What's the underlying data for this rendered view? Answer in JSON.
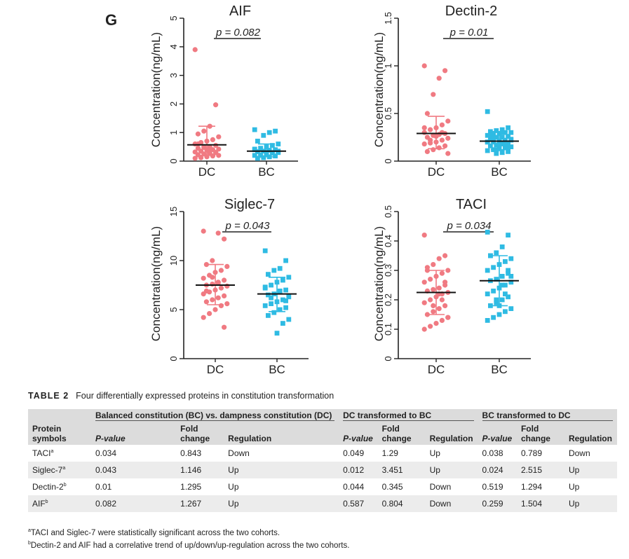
{
  "figure": {
    "panel_label": "G",
    "y_axis_label": "Concentration(ng/mL)"
  },
  "chart_data": [
    {
      "type": "scatter",
      "title": "AIF",
      "pvalue": "p = 0.082",
      "categories": [
        "DC",
        "BC"
      ],
      "ylim": [
        0,
        5
      ],
      "yticks": [
        0,
        1,
        2,
        3,
        4,
        5
      ],
      "xlabel": "",
      "ylabel": "Concentration(ng/mL)",
      "series": [
        {
          "name": "DC",
          "color": "#f07a82",
          "mean": 0.57,
          "sd_low": 0.2,
          "sd_high": 1.22,
          "values": [
            3.9,
            1.97,
            1.22,
            1.05,
            0.95,
            0.85,
            0.75,
            0.7,
            0.65,
            0.6,
            0.55,
            0.5,
            0.48,
            0.45,
            0.42,
            0.4,
            0.38,
            0.35,
            0.32,
            0.3,
            0.28,
            0.25,
            0.22,
            0.2,
            0.18,
            0.15,
            0.12,
            0.1,
            0.3,
            0.4,
            0.5,
            0.6
          ]
        },
        {
          "name": "BC",
          "color": "#2fbbe3",
          "mean": 0.35,
          "sd_low": 0.15,
          "sd_high": 0.6,
          "values": [
            1.1,
            1.05,
            1.0,
            0.9,
            0.7,
            0.6,
            0.55,
            0.5,
            0.45,
            0.42,
            0.4,
            0.38,
            0.35,
            0.33,
            0.3,
            0.28,
            0.25,
            0.22,
            0.2,
            0.18,
            0.15,
            0.12,
            0.1,
            0.35,
            0.3,
            0.25,
            0.2,
            0.4
          ]
        }
      ]
    },
    {
      "type": "scatter",
      "title": "Dectin-2",
      "pvalue": "p = 0.01",
      "categories": [
        "DC",
        "BC"
      ],
      "ylim": [
        0,
        1.5
      ],
      "yticks": [
        0,
        0.5,
        1,
        1.5
      ],
      "xlabel": "",
      "ylabel": "Concentration(ng/mL)",
      "series": [
        {
          "name": "DC",
          "color": "#f07a82",
          "mean": 0.29,
          "sd_low": 0.13,
          "sd_high": 0.47,
          "values": [
            1.0,
            0.95,
            0.87,
            0.7,
            0.5,
            0.42,
            0.38,
            0.35,
            0.33,
            0.3,
            0.29,
            0.28,
            0.27,
            0.25,
            0.24,
            0.22,
            0.2,
            0.19,
            0.18,
            0.16,
            0.14,
            0.12,
            0.1,
            0.08,
            0.3,
            0.26,
            0.22,
            0.35
          ]
        },
        {
          "name": "BC",
          "color": "#2fbbe3",
          "mean": 0.21,
          "sd_low": 0.12,
          "sd_high": 0.31,
          "values": [
            0.52,
            0.35,
            0.33,
            0.32,
            0.31,
            0.3,
            0.3,
            0.29,
            0.28,
            0.27,
            0.26,
            0.25,
            0.25,
            0.24,
            0.23,
            0.22,
            0.21,
            0.2,
            0.2,
            0.19,
            0.18,
            0.17,
            0.16,
            0.15,
            0.14,
            0.13,
            0.12,
            0.11,
            0.1,
            0.09,
            0.08,
            0.27,
            0.22,
            0.18,
            0.16,
            0.24,
            0.2,
            0.15,
            0.3,
            0.12
          ]
        }
      ]
    },
    {
      "type": "scatter",
      "title": "Siglec-7",
      "pvalue": "p = 0.043",
      "categories": [
        "DC",
        "BC"
      ],
      "ylim": [
        0,
        15
      ],
      "yticks": [
        0,
        5,
        10,
        15
      ],
      "xlabel": "",
      "ylabel": "Concentration(ng/mL)",
      "series": [
        {
          "name": "DC",
          "color": "#f07a82",
          "mean": 7.5,
          "sd_low": 5.5,
          "sd_high": 9.6,
          "values": [
            13.0,
            12.2,
            12.8,
            10.0,
            9.6,
            9.4,
            9.0,
            8.8,
            8.5,
            8.2,
            8.0,
            7.8,
            7.6,
            7.5,
            7.4,
            7.2,
            7.0,
            6.8,
            6.6,
            6.4,
            6.2,
            6.0,
            5.8,
            5.6,
            5.4,
            5.0,
            4.6,
            4.2,
            3.2,
            7.7,
            8.3,
            6.9
          ]
        },
        {
          "name": "BC",
          "color": "#2fbbe3",
          "mean": 6.6,
          "sd_low": 4.8,
          "sd_high": 8.3,
          "values": [
            11.0,
            10.0,
            9.2,
            9.0,
            8.6,
            8.3,
            8.0,
            7.8,
            7.5,
            7.3,
            7.0,
            6.8,
            6.6,
            6.5,
            6.3,
            6.0,
            5.8,
            5.6,
            5.4,
            5.2,
            5.0,
            4.7,
            4.4,
            4.0,
            3.6,
            2.6,
            6.2,
            7.2,
            5.9,
            6.9
          ]
        }
      ]
    },
    {
      "type": "scatter",
      "title": "TACI",
      "pvalue": "p = 0.034",
      "categories": [
        "DC",
        "BC"
      ],
      "ylim": [
        0,
        0.5
      ],
      "yticks": [
        0,
        0.1,
        0.2,
        0.3,
        0.4,
        0.5
      ],
      "xlabel": "",
      "ylabel": "Concentration(ng/mL)",
      "series": [
        {
          "name": "DC",
          "color": "#f07a82",
          "mean": 0.225,
          "sd_low": 0.15,
          "sd_high": 0.3,
          "values": [
            0.42,
            0.35,
            0.34,
            0.32,
            0.31,
            0.3,
            0.29,
            0.28,
            0.27,
            0.26,
            0.25,
            0.24,
            0.235,
            0.23,
            0.225,
            0.22,
            0.21,
            0.2,
            0.19,
            0.18,
            0.17,
            0.16,
            0.15,
            0.14,
            0.13,
            0.12,
            0.11,
            0.1,
            0.26,
            0.22,
            0.18,
            0.3,
            0.14,
            0.2
          ]
        },
        {
          "name": "BC",
          "color": "#2fbbe3",
          "mean": 0.265,
          "sd_low": 0.18,
          "sd_high": 0.35,
          "values": [
            0.43,
            0.42,
            0.38,
            0.36,
            0.35,
            0.34,
            0.33,
            0.32,
            0.31,
            0.3,
            0.29,
            0.28,
            0.27,
            0.265,
            0.26,
            0.25,
            0.24,
            0.23,
            0.22,
            0.21,
            0.2,
            0.19,
            0.18,
            0.17,
            0.16,
            0.15,
            0.14,
            0.13,
            0.3,
            0.25,
            0.2,
            0.35,
            0.28,
            0.22,
            0.18
          ]
        }
      ]
    }
  ],
  "table": {
    "label": "TABLE 2",
    "caption": "Four differentially expressed proteins in constitution transformation",
    "group_headers": [
      "Balanced constitution (BC) vs. dampness constitution (DC)",
      "DC transformed to BC",
      "BC transformed to DC"
    ],
    "first_col_header": "Protein symbols",
    "sub_headers": [
      "P-value",
      "Fold change",
      "Regulation"
    ],
    "rows": [
      {
        "protein": "TACI",
        "sup": "a",
        "cells": [
          "0.034",
          "0.843",
          "Down",
          "0.049",
          "1.29",
          "Up",
          "0.038",
          "0.789",
          "Down"
        ]
      },
      {
        "protein": "Siglec-7",
        "sup": "a",
        "cells": [
          "0.043",
          "1.146",
          "Up",
          "0.012",
          "3.451",
          "Up",
          "0.024",
          "2.515",
          "Up"
        ]
      },
      {
        "protein": "Dectin-2",
        "sup": "b",
        "cells": [
          "0.01",
          "1.295",
          "Up",
          "0.044",
          "0.345",
          "Down",
          "0.519",
          "1.294",
          "Up"
        ]
      },
      {
        "protein": "AIF",
        "sup": "b",
        "cells": [
          "0.082",
          "1.267",
          "Up",
          "0.587",
          "0.804",
          "Down",
          "0.259",
          "1.504",
          "Up"
        ]
      }
    ],
    "footnotes": [
      {
        "mark": "a",
        "text": "TACI and Siglec-7 were statistically significant across the two cohorts."
      },
      {
        "mark": "b",
        "text": "Dectin-2 and AIF had a correlative trend of up/down/up-regulation across the two cohorts."
      }
    ]
  }
}
